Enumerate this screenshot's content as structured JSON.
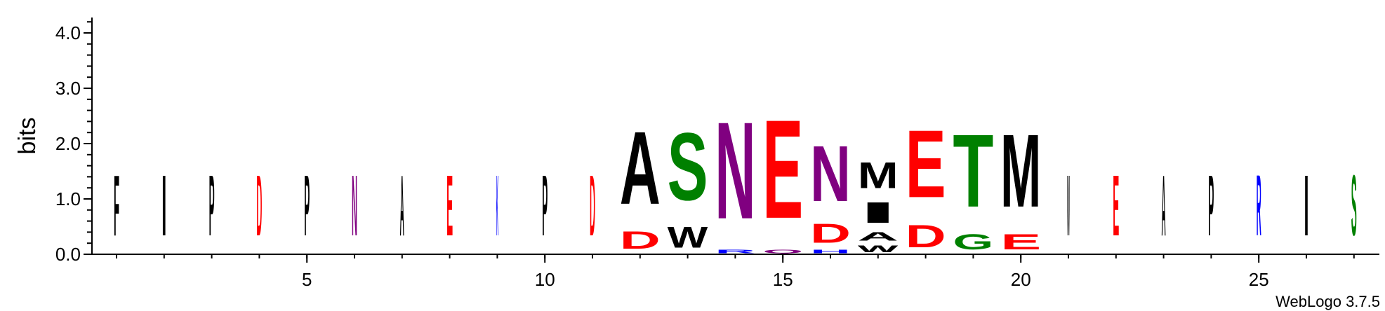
{
  "chart_data": {
    "type": "sequence-logo",
    "ylabel": "bits",
    "ylim": [
      0,
      4.3
    ],
    "y_ticks": [
      "0.0",
      "1.0",
      "2.0",
      "3.0",
      "4.0"
    ],
    "x_ticks": [
      5,
      10,
      15,
      20,
      25
    ],
    "x_tick_labels": [
      "5",
      "10",
      "15",
      "20",
      "25"
    ],
    "credit": "WebLogo 3.7.5",
    "colors": {
      "hydrophobic": "#000000",
      "acidic": "#ff0000",
      "polar": "#008000",
      "amide": "#800080",
      "basic": "#0000ff"
    },
    "positions": [
      {
        "pos": 1,
        "stack": [
          {
            "l": "F",
            "b": 1.75
          }
        ]
      },
      {
        "pos": 2,
        "stack": [
          {
            "l": "I",
            "b": 1.75
          }
        ]
      },
      {
        "pos": 3,
        "stack": [
          {
            "l": "P",
            "b": 1.75
          }
        ]
      },
      {
        "pos": 4,
        "stack": [
          {
            "l": "D",
            "b": 1.75
          }
        ]
      },
      {
        "pos": 5,
        "stack": [
          {
            "l": "P",
            "b": 1.75
          }
        ]
      },
      {
        "pos": 6,
        "stack": [
          {
            "l": "N",
            "b": 1.75
          }
        ]
      },
      {
        "pos": 7,
        "stack": [
          {
            "l": "A",
            "b": 1.75
          }
        ]
      },
      {
        "pos": 8,
        "stack": [
          {
            "l": "E",
            "b": 1.75
          }
        ]
      },
      {
        "pos": 9,
        "stack": [
          {
            "l": "K",
            "b": 1.75
          }
        ]
      },
      {
        "pos": 10,
        "stack": [
          {
            "l": "P",
            "b": 1.75
          }
        ]
      },
      {
        "pos": 11,
        "stack": [
          {
            "l": "D",
            "b": 1.75
          }
        ]
      },
      {
        "pos": 12,
        "stack": [
          {
            "l": "D",
            "b": 0.5
          },
          {
            "l": "A",
            "b": 2.1
          }
        ]
      },
      {
        "pos": 13,
        "stack": [
          {
            "l": "W",
            "b": 0.6
          },
          {
            "l": "S",
            "b": 1.95
          }
        ]
      },
      {
        "pos": 14,
        "stack": [
          {
            "l": "R",
            "b": 0.1
          },
          {
            "l": "N",
            "b": 2.8
          }
        ]
      },
      {
        "pos": 15,
        "stack": [
          {
            "l": "Q",
            "b": 0.1
          },
          {
            "l": "E",
            "b": 2.85
          }
        ]
      },
      {
        "pos": 16,
        "stack": [
          {
            "l": "H",
            "b": 0.1
          },
          {
            "l": "D",
            "b": 0.55
          },
          {
            "l": "N",
            "b": 1.6
          }
        ]
      },
      {
        "pos": 17,
        "stack": [
          {
            "l": "W",
            "b": 0.2
          },
          {
            "l": "A",
            "b": 0.25
          },
          {
            "l": "I",
            "b": 0.6
          },
          {
            "l": "M",
            "b": 0.75
          }
        ]
      },
      {
        "pos": 18,
        "stack": [
          {
            "l": "D",
            "b": 0.65
          },
          {
            "l": "E",
            "b": 1.95
          }
        ]
      },
      {
        "pos": 19,
        "stack": [
          {
            "l": "G",
            "b": 0.45
          },
          {
            "l": "T",
            "b": 2.1
          }
        ]
      },
      {
        "pos": 20,
        "stack": [
          {
            "l": "E",
            "b": 0.45
          },
          {
            "l": "M",
            "b": 2.1
          }
        ]
      },
      {
        "pos": 21,
        "stack": [
          {
            "l": "W",
            "b": 1.75
          }
        ]
      },
      {
        "pos": 22,
        "stack": [
          {
            "l": "E",
            "b": 1.75
          }
        ]
      },
      {
        "pos": 23,
        "stack": [
          {
            "l": "A",
            "b": 1.75
          }
        ]
      },
      {
        "pos": 24,
        "stack": [
          {
            "l": "P",
            "b": 1.75
          }
        ]
      },
      {
        "pos": 25,
        "stack": [
          {
            "l": "R",
            "b": 1.75
          }
        ]
      },
      {
        "pos": 26,
        "stack": [
          {
            "l": "I",
            "b": 1.75
          }
        ]
      },
      {
        "pos": 27,
        "stack": [
          {
            "l": "S",
            "b": 1.75
          }
        ]
      }
    ]
  }
}
